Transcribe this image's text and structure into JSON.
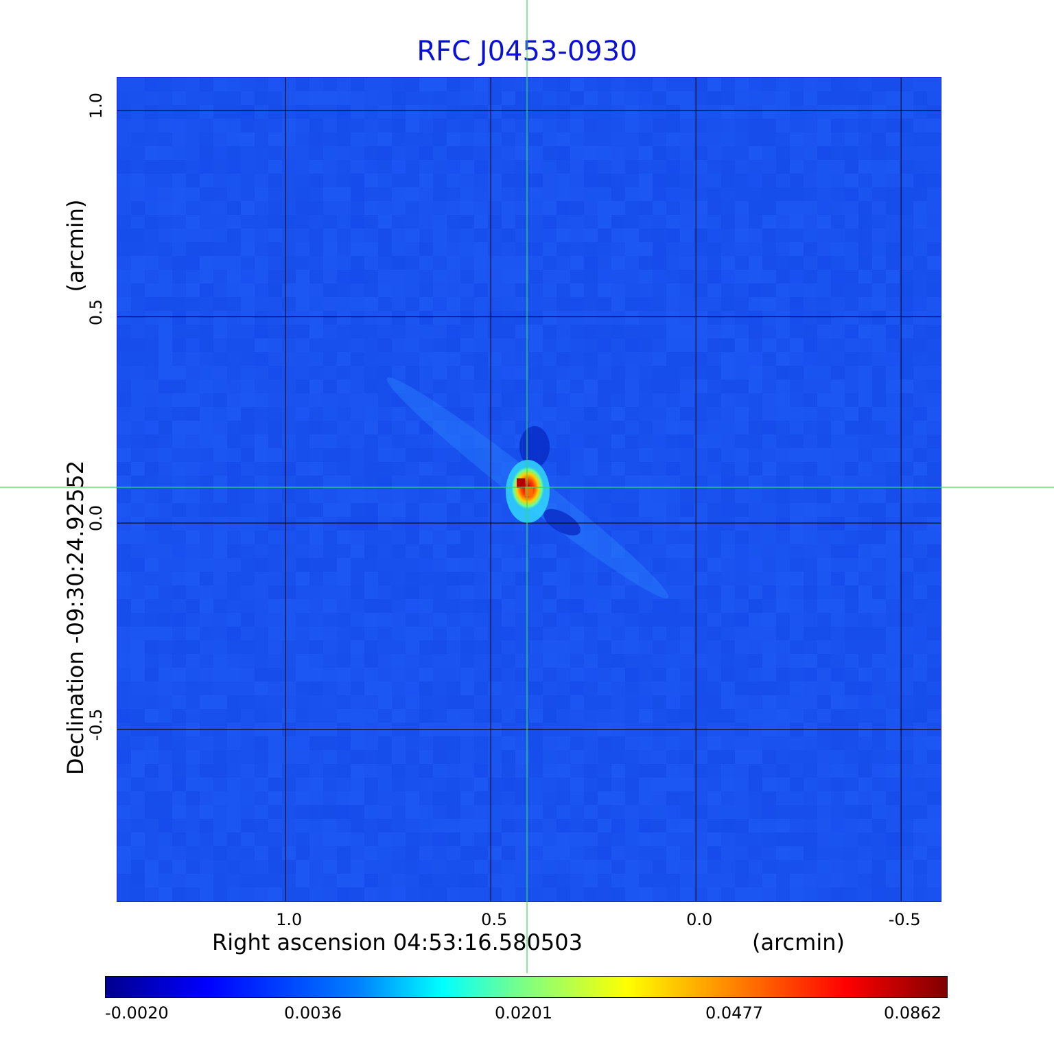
{
  "chart_data": {
    "type": "heatmap",
    "title": "RFC J0453-0930",
    "xlabel": "Right ascension  04:53:16.580503",
    "xunit": "(arcmin)",
    "ylabel": "Declination  -09:30:24.92552",
    "yunit": "(arcmin)",
    "x_ticks": [
      "1.0",
      "0.5",
      "0.0",
      "-0.5"
    ],
    "x_tick_values": [
      1.0,
      0.5,
      0.0,
      -0.5
    ],
    "xlim": [
      1.41,
      -0.6
    ],
    "y_ticks": [
      "1.0",
      "0.5",
      "0.0",
      "-0.5"
    ],
    "y_tick_values": [
      1.0,
      0.5,
      0.0,
      -0.5
    ],
    "ylim": [
      -0.92,
      1.08
    ],
    "grid": true,
    "crosshair": {
      "x": 0.41,
      "y": 0.085,
      "color": "#33dd55"
    },
    "source_peak": {
      "x": 0.41,
      "y": 0.085,
      "peak_value": 0.0862
    },
    "colorbar": {
      "tick_labels": [
        "-0.0020",
        "0.0036",
        "0.0201",
        "0.0477",
        "0.0862"
      ],
      "tick_values": [
        -0.002,
        0.0036,
        0.0201,
        0.0477,
        0.0862
      ],
      "colormap": "jet",
      "position": "bottom"
    },
    "colors": {
      "title": "#0a10d8",
      "background_field": "#1850f0",
      "grid": "#000000"
    }
  }
}
